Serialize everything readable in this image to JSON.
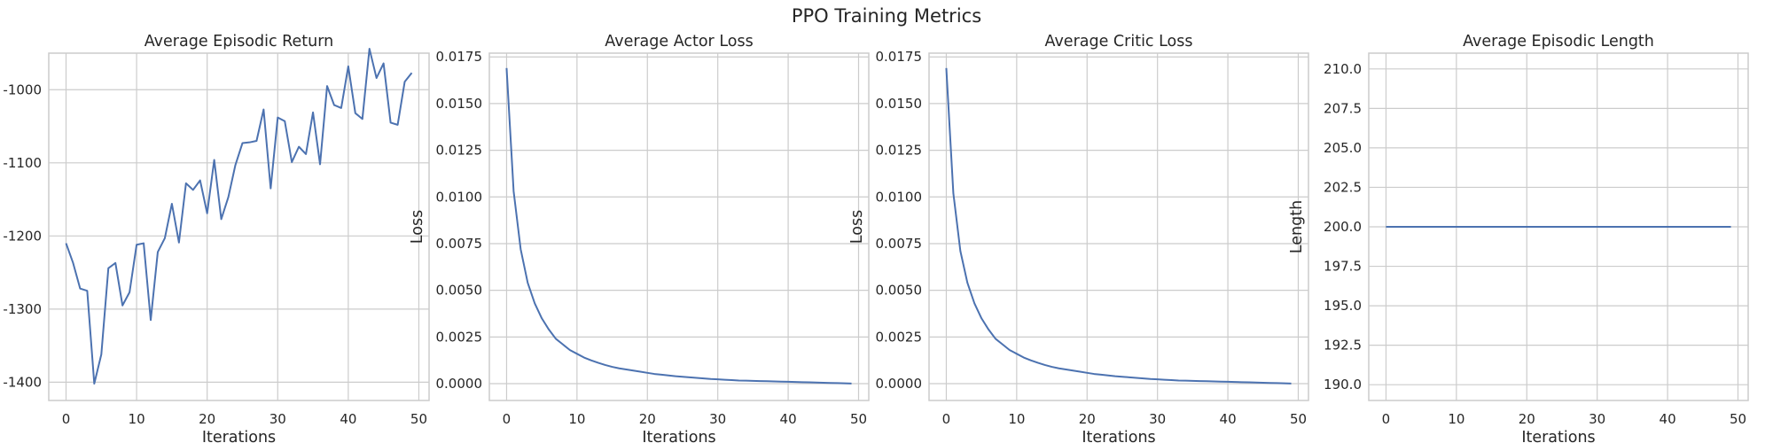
{
  "figure_title": "PPO Training Metrics",
  "chart_data": [
    {
      "type": "line",
      "title": "Average Episodic Return",
      "xlabel": "Iterations",
      "ylabel": "",
      "grid": true,
      "xlim": [
        -2.45,
        51.45
      ],
      "ylim": [
        -1425,
        -950
      ],
      "xticks": [
        0,
        10,
        20,
        30,
        40,
        50
      ],
      "yticks": [
        -1400,
        -1300,
        -1200,
        -1100,
        -1000
      ],
      "xtick_labels": [
        "0",
        "10",
        "20",
        "30",
        "40",
        "50"
      ],
      "ytick_labels": [
        "-1400",
        "-1300",
        "-1200",
        "-1100",
        "-1000"
      ],
      "x": [
        0,
        1,
        2,
        3,
        4,
        5,
        6,
        7,
        8,
        9,
        10,
        11,
        12,
        13,
        14,
        15,
        16,
        17,
        18,
        19,
        20,
        21,
        22,
        23,
        24,
        25,
        26,
        27,
        28,
        29,
        30,
        31,
        32,
        33,
        34,
        35,
        36,
        37,
        38,
        39,
        40,
        41,
        42,
        43,
        44,
        45,
        46,
        47,
        48,
        49
      ],
      "values": [
        -1210,
        -1237,
        -1272,
        -1275,
        -1402,
        -1362,
        -1244,
        -1237,
        -1295,
        -1277,
        -1212,
        -1210,
        -1315,
        -1222,
        -1203,
        -1156,
        -1209,
        -1128,
        -1137,
        -1124,
        -1169,
        -1096,
        -1177,
        -1147,
        -1103,
        -1073,
        -1072,
        -1070,
        -1027,
        -1135,
        -1038,
        -1043,
        -1099,
        -1078,
        -1088,
        -1031,
        -1102,
        -995,
        -1021,
        -1025,
        -968,
        -1032,
        -1040,
        -944,
        -984,
        -964,
        -1045,
        -1048,
        -989,
        -977
      ]
    },
    {
      "type": "line",
      "title": "Average Actor Loss",
      "xlabel": "Iterations",
      "ylabel": "Loss",
      "grid": true,
      "xlim": [
        -2.45,
        51.45
      ],
      "ylim": [
        -0.0009,
        0.0177
      ],
      "xticks": [
        0,
        10,
        20,
        30,
        40,
        50
      ],
      "yticks": [
        0,
        0.0025,
        0.005,
        0.0075,
        0.01,
        0.0125,
        0.015,
        0.0175
      ],
      "xtick_labels": [
        "0",
        "10",
        "20",
        "30",
        "40",
        "50"
      ],
      "ytick_labels": [
        "0.0000",
        "0.0025",
        "0.0050",
        "0.0075",
        "0.0100",
        "0.0125",
        "0.0150",
        "0.0175"
      ],
      "x": [
        0,
        1,
        2,
        3,
        4,
        5,
        6,
        7,
        8,
        9,
        10,
        11,
        12,
        13,
        14,
        15,
        16,
        17,
        18,
        19,
        20,
        21,
        22,
        23,
        24,
        25,
        26,
        27,
        28,
        29,
        30,
        31,
        32,
        33,
        34,
        35,
        36,
        37,
        38,
        39,
        40,
        41,
        42,
        43,
        44,
        45,
        46,
        47,
        48,
        49
      ],
      "values": [
        0.0169,
        0.0103,
        0.0072,
        0.0054,
        0.0043,
        0.0035,
        0.0029,
        0.0024,
        0.0021,
        0.0018,
        0.0016,
        0.0014,
        0.00125,
        0.00112,
        0.001,
        0.0009,
        0.00082,
        0.00076,
        0.0007,
        0.00064,
        0.00058,
        0.00052,
        0.00048,
        0.00044,
        0.0004,
        0.00037,
        0.00034,
        0.00031,
        0.00028,
        0.00025,
        0.00023,
        0.00021,
        0.00019,
        0.00017,
        0.00016,
        0.00015,
        0.00014,
        0.00013,
        0.00012,
        0.00011,
        0.0001,
        9e-05,
        8e-05,
        7e-05,
        6e-05,
        5e-05,
        4e-05,
        3e-05,
        2e-05,
        1e-05
      ]
    },
    {
      "type": "line",
      "title": "Average Critic Loss",
      "xlabel": "Iterations",
      "ylabel": "Loss",
      "grid": true,
      "xlim": [
        -2.45,
        51.45
      ],
      "ylim": [
        -0.0009,
        0.0177
      ],
      "xticks": [
        0,
        10,
        20,
        30,
        40,
        50
      ],
      "yticks": [
        0,
        0.0025,
        0.005,
        0.0075,
        0.01,
        0.0125,
        0.015,
        0.0175
      ],
      "xtick_labels": [
        "0",
        "10",
        "20",
        "30",
        "40",
        "50"
      ],
      "ytick_labels": [
        "0.0000",
        "0.0025",
        "0.0050",
        "0.0075",
        "0.0100",
        "0.0125",
        "0.0150",
        "0.0175"
      ],
      "x": [
        0,
        1,
        2,
        3,
        4,
        5,
        6,
        7,
        8,
        9,
        10,
        11,
        12,
        13,
        14,
        15,
        16,
        17,
        18,
        19,
        20,
        21,
        22,
        23,
        24,
        25,
        26,
        27,
        28,
        29,
        30,
        31,
        32,
        33,
        34,
        35,
        36,
        37,
        38,
        39,
        40,
        41,
        42,
        43,
        44,
        45,
        46,
        47,
        48,
        49
      ],
      "values": [
        0.0169,
        0.0102,
        0.0071,
        0.0054,
        0.0043,
        0.0035,
        0.0029,
        0.0024,
        0.0021,
        0.0018,
        0.0016,
        0.0014,
        0.00125,
        0.00112,
        0.001,
        0.0009,
        0.00082,
        0.00076,
        0.0007,
        0.00064,
        0.00058,
        0.00052,
        0.00048,
        0.00044,
        0.0004,
        0.00037,
        0.00034,
        0.00031,
        0.00028,
        0.00025,
        0.00023,
        0.00021,
        0.00019,
        0.00017,
        0.00016,
        0.00015,
        0.00014,
        0.00013,
        0.00012,
        0.00011,
        0.0001,
        9e-05,
        8e-05,
        7e-05,
        6e-05,
        5e-05,
        4e-05,
        3e-05,
        2e-05,
        1e-05
      ]
    },
    {
      "type": "line",
      "title": "Average Episodic Length",
      "xlabel": "Iterations",
      "ylabel": "Length",
      "grid": true,
      "xlim": [
        -2.45,
        51.45
      ],
      "ylim": [
        189,
        211
      ],
      "xticks": [
        0,
        10,
        20,
        30,
        40,
        50
      ],
      "yticks": [
        190,
        192.5,
        195,
        197.5,
        200,
        202.5,
        205,
        207.5,
        210
      ],
      "xtick_labels": [
        "0",
        "10",
        "20",
        "30",
        "40",
        "50"
      ],
      "ytick_labels": [
        "190.0",
        "192.5",
        "195.0",
        "197.5",
        "200.0",
        "202.5",
        "205.0",
        "207.5",
        "210.0"
      ],
      "x": [
        0,
        1,
        2,
        3,
        4,
        5,
        6,
        7,
        8,
        9,
        10,
        11,
        12,
        13,
        14,
        15,
        16,
        17,
        18,
        19,
        20,
        21,
        22,
        23,
        24,
        25,
        26,
        27,
        28,
        29,
        30,
        31,
        32,
        33,
        34,
        35,
        36,
        37,
        38,
        39,
        40,
        41,
        42,
        43,
        44,
        45,
        46,
        47,
        48,
        49
      ],
      "values": [
        200,
        200,
        200,
        200,
        200,
        200,
        200,
        200,
        200,
        200,
        200,
        200,
        200,
        200,
        200,
        200,
        200,
        200,
        200,
        200,
        200,
        200,
        200,
        200,
        200,
        200,
        200,
        200,
        200,
        200,
        200,
        200,
        200,
        200,
        200,
        200,
        200,
        200,
        200,
        200,
        200,
        200,
        200,
        200,
        200,
        200,
        200,
        200,
        200,
        200
      ]
    }
  ]
}
